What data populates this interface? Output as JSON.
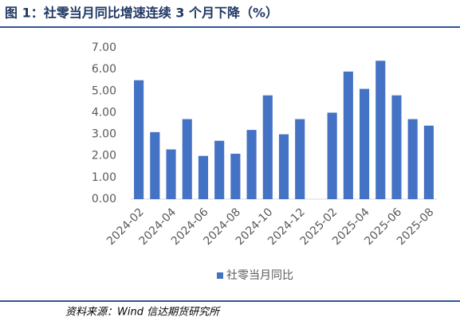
{
  "chart_data": {
    "type": "bar",
    "title": "图 1：社零当月同比增速连续 3 个月下降（%）",
    "source": "资料来源：Wind 信达期货研究所",
    "categories": [
      "2024-02",
      null,
      "2024-04",
      null,
      "2024-06",
      null,
      "2024-08",
      null,
      "2024-10",
      null,
      "2024-12",
      null,
      "2025-02",
      null,
      "2025-04",
      null,
      "2025-06",
      null,
      "2025-08"
    ],
    "series": [
      {
        "name": "社零当月同比",
        "color": "#4472c4",
        "values": [
          5.5,
          3.1,
          2.3,
          3.7,
          2.0,
          2.7,
          2.1,
          3.2,
          4.8,
          3.0,
          3.7,
          null,
          4.0,
          5.9,
          5.1,
          6.4,
          4.8,
          3.7,
          3.4
        ]
      }
    ],
    "ylim": [
      0,
      7
    ],
    "yticks": [
      {
        "value": 0,
        "label": "0.00"
      },
      {
        "value": 1,
        "label": "1.00"
      },
      {
        "value": 2,
        "label": "2.00"
      },
      {
        "value": 3,
        "label": "3.00"
      },
      {
        "value": 4,
        "label": "4.00"
      },
      {
        "value": 5,
        "label": "5.00"
      },
      {
        "value": 6,
        "label": "6.00"
      },
      {
        "value": 7,
        "label": "7.00"
      }
    ],
    "legend": "bottom"
  }
}
